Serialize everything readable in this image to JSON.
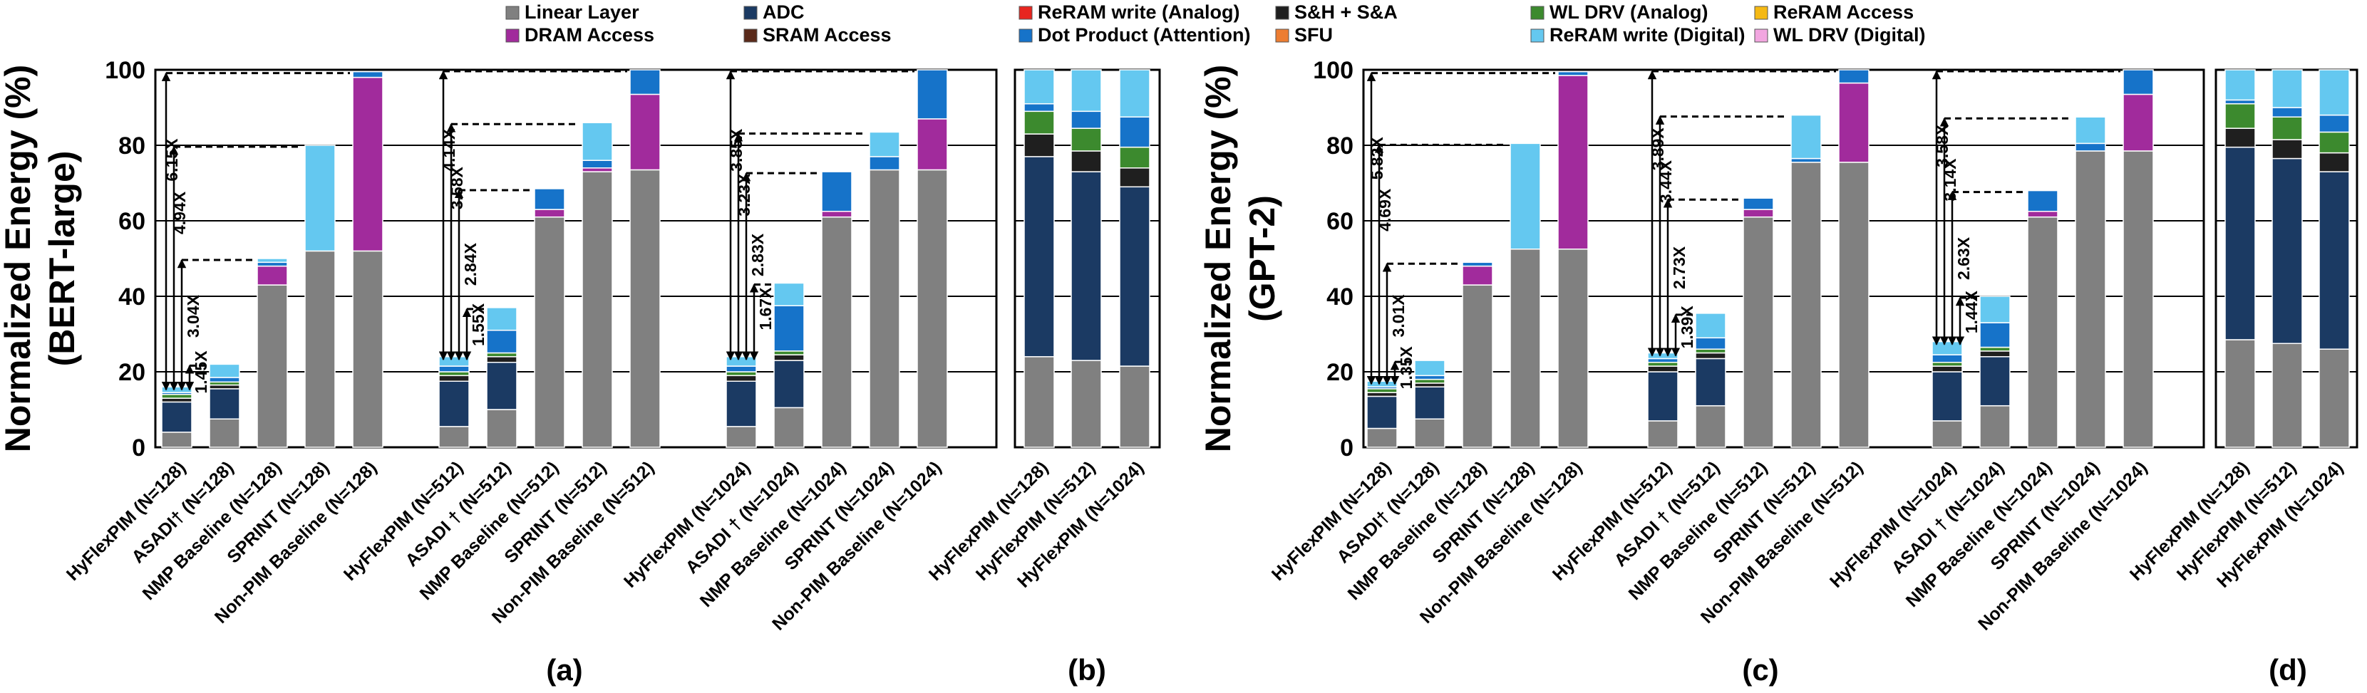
{
  "components": [
    {
      "key": "linear",
      "name": "Linear Layer",
      "color": "#808080"
    },
    {
      "key": "adc",
      "name": "ADC",
      "color": "#1b3a63"
    },
    {
      "key": "reram_analog",
      "name": "ReRAM write (Analog)",
      "color": "#e8251f"
    },
    {
      "key": "sh",
      "name": "S&H + S&A",
      "color": "#1f1f1f"
    },
    {
      "key": "wl_analog",
      "name": "WL DRV (Analog)",
      "color": "#3c8a2e"
    },
    {
      "key": "reram_access",
      "name": "ReRAM  Access",
      "color": "#f5b914"
    },
    {
      "key": "dram",
      "name": "DRAM Access",
      "color": "#a12b9c"
    },
    {
      "key": "sram",
      "name": "SRAM Access",
      "color": "#5a2a1a"
    },
    {
      "key": "dot",
      "name": "Dot Product (Attention)",
      "color": "#1673c9"
    },
    {
      "key": "sfu",
      "name": "SFU",
      "color": "#ed7d31"
    },
    {
      "key": "reram_digital",
      "name": "ReRAM write (Digital)",
      "color": "#64c8f0"
    },
    {
      "key": "wl_digital",
      "name": "WL DRV (Digital)",
      "color": "#f2a6e0"
    }
  ],
  "chart_data": [
    {
      "id": "bert",
      "type": "bar",
      "stacked": true,
      "panels": [
        "(a)",
        "(b)"
      ],
      "ylabel_lines": [
        "Normalized Energy (%)",
        "(BERT-large)"
      ],
      "ylim": [
        0,
        100
      ],
      "yticks": [
        "0",
        "20",
        "40",
        "60",
        "80",
        "100"
      ],
      "group_a_labels": [
        [
          "HyFlexPIM (N=128)",
          "ASADI† (N=128)",
          "NMP Baseline (N=128)",
          "SPRINT (N=128)",
          "Non-PIM Baseline (N=128)"
        ],
        [
          "HyFlexPIM (N=512)",
          "ASADI † (N=512)",
          "NMP Baseline (N=512)",
          "SPRINT (N=512)",
          "Non-PIM Baseline (N=512)"
        ],
        [
          "HyFlexPIM (N=1024)",
          "ASADI † (N=1024)",
          "NMP Baseline (N=1024)",
          "SPRINT (N=1024)",
          "Non-PIM Baseline (N=1024)"
        ]
      ],
      "bars_a": [
        [
          {
            "linear": 4,
            "adc": 8,
            "sh": 1,
            "wl_analog": 1,
            "dot": 0.5,
            "reram_digital": 1.5
          },
          {
            "linear": 7.5,
            "adc": 8,
            "sh": 1,
            "wl_analog": 0.8,
            "dot": 1.2,
            "reram_digital": 3.5
          },
          {
            "linear": 43,
            "dram": 5,
            "dot": 1,
            "reram_digital": 1
          },
          {
            "linear": 52,
            "reram_digital": 28
          },
          {
            "linear": 52,
            "dram": 46,
            "dot": 1.5
          }
        ],
        [
          {
            "linear": 5.5,
            "adc": 12,
            "sh": 1.5,
            "wl_analog": 1,
            "dot": 1.5,
            "reram_digital": 2.5
          },
          {
            "linear": 10,
            "adc": 12.5,
            "sh": 1.5,
            "wl_analog": 1,
            "dot": 6,
            "reram_digital": 6
          },
          {
            "linear": 61,
            "dram": 2,
            "dot": 5.5
          },
          {
            "linear": 73,
            "dram": 1,
            "dot": 2,
            "reram_digital": 10
          },
          {
            "linear": 73.5,
            "dram": 20,
            "dot": 6.5
          }
        ],
        [
          {
            "linear": 5.5,
            "adc": 12,
            "sh": 1.5,
            "wl_analog": 1,
            "dot": 1.5,
            "reram_digital": 2.5
          },
          {
            "linear": 10.5,
            "adc": 12.5,
            "sh": 1.5,
            "wl_analog": 1,
            "dot": 12,
            "reram_digital": 6
          },
          {
            "linear": 61,
            "dram": 1.5,
            "dot": 10.5
          },
          {
            "linear": 73.5,
            "dot": 3.5,
            "reram_digital": 6.5
          },
          {
            "linear": 73.5,
            "dram": 13.5,
            "dot": 13
          }
        ]
      ],
      "group_b_labels": [
        "HyFlexPIM (N=128)",
        "HyFlexPIM (N=512)",
        "HyFlexPIM (N=1024)"
      ],
      "bars_b": [
        {
          "linear": 24,
          "adc": 53,
          "sh": 6,
          "wl_analog": 6,
          "dot": 2,
          "reram_digital": 9
        },
        {
          "linear": 23,
          "adc": 50,
          "sh": 5.5,
          "wl_analog": 6,
          "dot": 4.5,
          "reram_digital": 11
        },
        {
          "linear": 21.5,
          "adc": 47.5,
          "sh": 5,
          "wl_analog": 5.5,
          "dot": 8,
          "reram_digital": 12.5
        }
      ],
      "annotations": [
        {
          "from": [
            0,
            0
          ],
          "to": [
            0,
            4
          ],
          "label": "6.15X"
        },
        {
          "from": [
            0,
            0
          ],
          "to": [
            0,
            3
          ],
          "label": "4.94X"
        },
        {
          "from": [
            0,
            0
          ],
          "to": [
            0,
            2
          ],
          "label": "3.04X"
        },
        {
          "from": [
            0,
            0
          ],
          "to": [
            0,
            1
          ],
          "label": "1.45X"
        },
        {
          "from": [
            1,
            0
          ],
          "to": [
            1,
            4
          ],
          "label": "4.14X"
        },
        {
          "from": [
            1,
            0
          ],
          "to": [
            1,
            3
          ],
          "label": "3.58X"
        },
        {
          "from": [
            1,
            0
          ],
          "to": [
            1,
            2
          ],
          "label": "2.84X"
        },
        {
          "from": [
            1,
            0
          ],
          "to": [
            1,
            1
          ],
          "label": "1.55X"
        },
        {
          "from": [
            2,
            0
          ],
          "to": [
            2,
            4
          ],
          "label": "3.85X"
        },
        {
          "from": [
            2,
            0
          ],
          "to": [
            2,
            3
          ],
          "label": "3.23X"
        },
        {
          "from": [
            2,
            0
          ],
          "to": [
            2,
            2
          ],
          "label": "2.83X"
        },
        {
          "from": [
            2,
            0
          ],
          "to": [
            2,
            1
          ],
          "label": "1.67X"
        }
      ]
    },
    {
      "id": "gpt",
      "type": "bar",
      "stacked": true,
      "panels": [
        "(c)",
        "(d)"
      ],
      "ylabel_lines": [
        "Normalized Energy (%)",
        "(GPT-2)"
      ],
      "ylim": [
        0,
        100
      ],
      "yticks": [
        "0",
        "20",
        "40",
        "60",
        "80",
        "100"
      ],
      "group_a_labels": [
        [
          "HyFlexPIM (N=128)",
          "ASADI† (N=128)",
          "NMP Baseline (N=128)",
          "SPRINT (N=128)",
          "Non-PIM Baseline (N=128)"
        ],
        [
          "HyFlexPIM (N=512)",
          "ASADI † (N=512)",
          "NMP Baseline (N=512)",
          "SPRINT (N=512)",
          "Non-PIM Baseline (N=512)"
        ],
        [
          "HyFlexPIM (N=1024)",
          "ASADI † (N=1024)",
          "NMP Baseline (N=1024)",
          "SPRINT (N=1024)",
          "Non-PIM Baseline (N=1024)"
        ]
      ],
      "bars_a": [
        [
          {
            "linear": 5,
            "adc": 8.5,
            "sh": 1,
            "wl_analog": 1,
            "dot": 0.5,
            "reram_digital": 1.5
          },
          {
            "linear": 7.5,
            "adc": 8.5,
            "sh": 1,
            "wl_analog": 1,
            "dot": 1,
            "reram_digital": 4
          },
          {
            "linear": 43,
            "dram": 5,
            "dot": 1
          },
          {
            "linear": 52.5,
            "reram_digital": 28
          },
          {
            "linear": 52.5,
            "dram": 46,
            "dot": 1
          }
        ],
        [
          {
            "linear": 7,
            "adc": 13,
            "sh": 1.5,
            "wl_analog": 1,
            "dot": 1,
            "reram_digital": 1.5
          },
          {
            "linear": 11,
            "adc": 12.5,
            "sh": 1.5,
            "wl_analog": 1,
            "dot": 3,
            "reram_digital": 6.5
          },
          {
            "linear": 61,
            "dram": 2,
            "dot": 3
          },
          {
            "linear": 75.5,
            "dot": 1,
            "reram_digital": 11.5
          },
          {
            "linear": 75.5,
            "dram": 21,
            "dot": 3.5
          }
        ],
        [
          {
            "linear": 7,
            "adc": 13,
            "sh": 1.5,
            "wl_analog": 1,
            "dot": 2,
            "reram_digital": 3.5
          },
          {
            "linear": 11,
            "adc": 13,
            "sh": 1.5,
            "wl_analog": 1,
            "dot": 6.5,
            "reram_digital": 7
          },
          {
            "linear": 61,
            "dram": 1.5,
            "dot": 5.5
          },
          {
            "linear": 78.5,
            "dot": 2,
            "reram_digital": 7
          },
          {
            "linear": 78.5,
            "dram": 15,
            "dot": 6.5
          }
        ]
      ],
      "group_b_labels": [
        "HyFlexPIM (N=128)",
        "HyFlexPIM (N=512)",
        "HyFlexPIM (N=1024)"
      ],
      "bars_b": [
        {
          "linear": 28.5,
          "adc": 51,
          "sh": 5,
          "wl_analog": 6.5,
          "dot": 1,
          "reram_digital": 8
        },
        {
          "linear": 27.5,
          "adc": 49,
          "sh": 5,
          "wl_analog": 6,
          "dot": 2.5,
          "reram_digital": 10
        },
        {
          "linear": 26,
          "adc": 47,
          "sh": 5,
          "wl_analog": 5.5,
          "dot": 4.5,
          "reram_digital": 12
        }
      ],
      "annotations": [
        {
          "from": [
            0,
            0
          ],
          "to": [
            0,
            4
          ],
          "label": "5.82X"
        },
        {
          "from": [
            0,
            0
          ],
          "to": [
            0,
            3
          ],
          "label": "4.69X"
        },
        {
          "from": [
            0,
            0
          ],
          "to": [
            0,
            2
          ],
          "label": "3.01X"
        },
        {
          "from": [
            0,
            0
          ],
          "to": [
            0,
            1
          ],
          "label": "1.35X"
        },
        {
          "from": [
            1,
            0
          ],
          "to": [
            1,
            4
          ],
          "label": "3.89X"
        },
        {
          "from": [
            1,
            0
          ],
          "to": [
            1,
            3
          ],
          "label": "3.44X"
        },
        {
          "from": [
            1,
            0
          ],
          "to": [
            1,
            2
          ],
          "label": "2.73X"
        },
        {
          "from": [
            1,
            0
          ],
          "to": [
            1,
            1
          ],
          "label": "1.39X"
        },
        {
          "from": [
            2,
            0
          ],
          "to": [
            2,
            4
          ],
          "label": "3.58X"
        },
        {
          "from": [
            2,
            0
          ],
          "to": [
            2,
            3
          ],
          "label": "3.14X"
        },
        {
          "from": [
            2,
            0
          ],
          "to": [
            2,
            2
          ],
          "label": "2.63X"
        },
        {
          "from": [
            2,
            0
          ],
          "to": [
            2,
            1
          ],
          "label": "1.44X"
        }
      ]
    }
  ]
}
